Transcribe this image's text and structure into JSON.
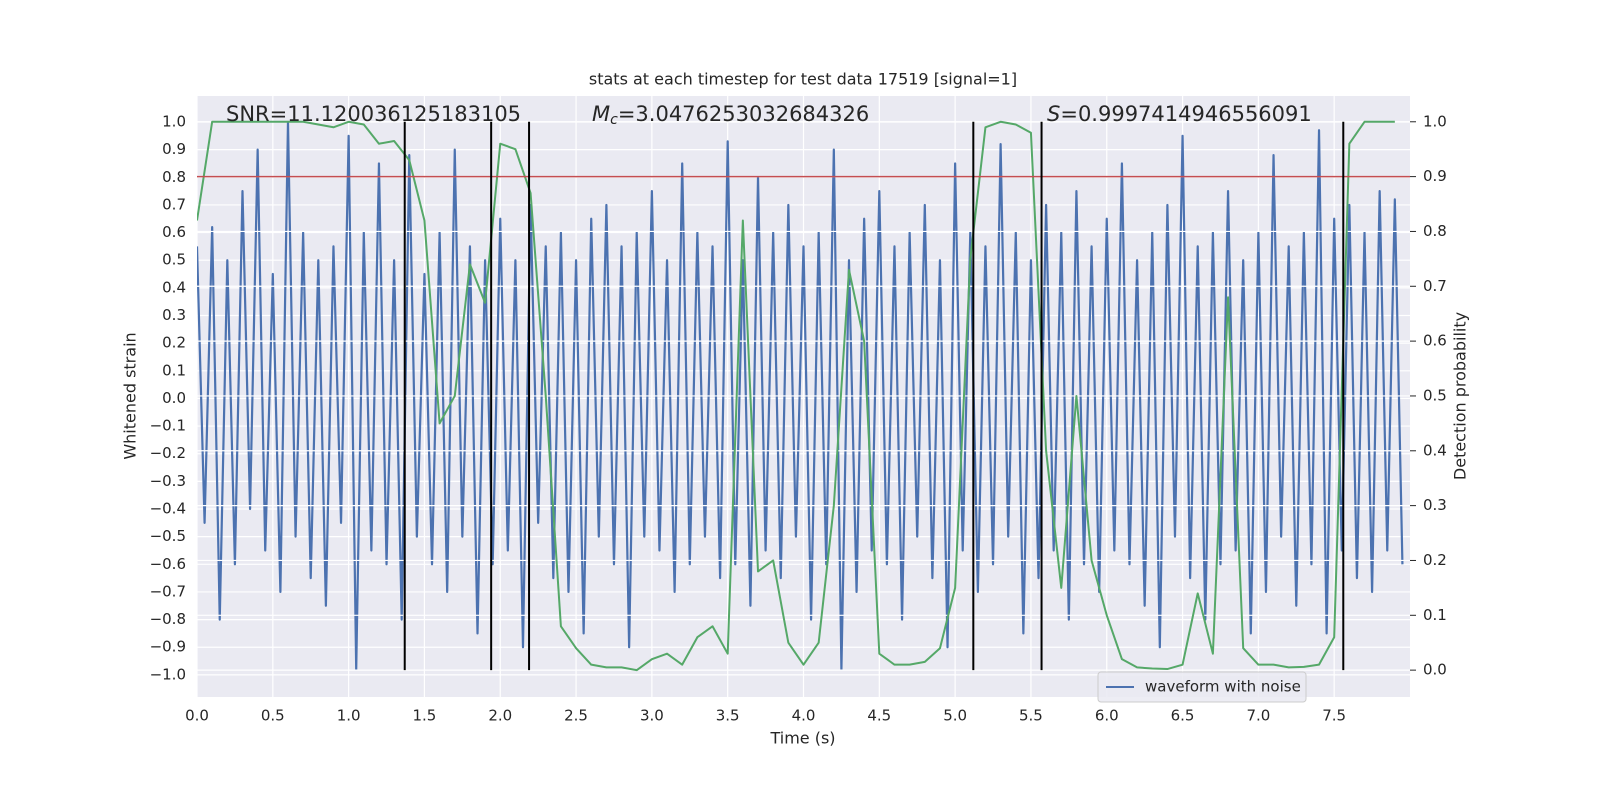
{
  "chart_data": {
    "type": "line",
    "title": "stats at each timestep for test data 17519 [signal=1]",
    "xlabel": "Time (s)",
    "ylabel": "Whitened strain",
    "y2label": "Detection probability",
    "annotations": [
      {
        "text": "SNR=11.120036125183105"
      },
      {
        "symbol": "M",
        "subscript": "c",
        "text": "=3.0476253032684326"
      },
      {
        "symbol": "S",
        "text": "=0.9997414946556091"
      }
    ],
    "xlim": [
      0,
      8.0
    ],
    "ylim": [
      -1.08,
      1.094
    ],
    "y2lim": [
      -0.049,
      1.047
    ],
    "xticks": [
      {
        "value": 0,
        "label": "0.0"
      },
      0.5,
      {
        "value": 1,
        "label": "1.0"
      },
      1.5,
      {
        "value": 2,
        "label": "2.0"
      },
      2.5,
      {
        "value": 3,
        "label": "3.0"
      },
      3.5,
      {
        "value": 4,
        "label": "4.0"
      },
      4.5,
      {
        "value": 5,
        "label": "5.0"
      },
      5.5,
      {
        "value": 6,
        "label": "6.0"
      },
      6.5,
      {
        "value": 7,
        "label": "7.0"
      },
      7.5
    ],
    "yticks": [
      {
        "value": -1,
        "label": "−1.0"
      },
      {
        "value": -0.9,
        "label": "−0.9"
      },
      {
        "value": -0.8,
        "label": "−0.8"
      },
      {
        "value": -0.7,
        "label": "−0.7"
      },
      {
        "value": -0.6,
        "label": "−0.6"
      },
      {
        "value": -0.5,
        "label": "−0.5"
      },
      {
        "value": -0.4,
        "label": "−0.4"
      },
      {
        "value": -0.3,
        "label": "−0.3"
      },
      {
        "value": -0.2,
        "label": "−0.2"
      },
      {
        "value": -0.1,
        "label": "−0.1"
      },
      {
        "value": 0,
        "label": "0.0"
      },
      0.1,
      0.2,
      0.3,
      0.4,
      0.5,
      0.6,
      0.7,
      0.8,
      0.9,
      {
        "value": 1,
        "label": "1.0"
      }
    ],
    "y2ticks": [
      {
        "value": 0,
        "label": "0.0"
      },
      0.1,
      0.2,
      0.3,
      0.4,
      0.5,
      0.6,
      0.7,
      0.8,
      0.9,
      {
        "value": 1,
        "label": "1.0"
      }
    ],
    "grid": true,
    "legend": "lower right",
    "series": [
      {
        "name": "waveform with noise",
        "color": "#4c72b0",
        "axis": "y",
        "x": [
          0,
          0.05,
          0.1,
          0.15,
          0.2,
          0.25,
          0.3,
          0.35,
          0.4,
          0.45,
          0.5,
          0.55,
          0.6,
          0.65,
          0.7,
          0.75,
          0.8,
          0.85,
          0.9,
          0.95,
          1,
          1.05,
          1.1,
          1.15,
          1.2,
          1.25,
          1.3,
          1.35,
          1.4,
          1.45,
          1.5,
          1.55,
          1.6,
          1.65,
          1.7,
          1.75,
          1.8,
          1.85,
          1.9,
          1.95,
          2,
          2.05,
          2.1,
          2.15,
          2.2,
          2.25,
          2.3,
          2.35,
          2.4,
          2.45,
          2.5,
          2.55,
          2.6,
          2.65,
          2.7,
          2.75,
          2.8,
          2.85,
          2.9,
          2.95,
          3,
          3.05,
          3.1,
          3.15,
          3.2,
          3.25,
          3.3,
          3.35,
          3.4,
          3.45,
          3.5,
          3.55,
          3.6,
          3.65,
          3.7,
          3.75,
          3.8,
          3.85,
          3.9,
          3.95,
          4,
          4.05,
          4.1,
          4.15,
          4.2,
          4.25,
          4.3,
          4.35,
          4.4,
          4.45,
          4.5,
          4.55,
          4.6,
          4.65,
          4.7,
          4.75,
          4.8,
          4.85,
          4.9,
          4.95,
          5,
          5.05,
          5.1,
          5.15,
          5.2,
          5.25,
          5.3,
          5.35,
          5.4,
          5.45,
          5.5,
          5.55,
          5.6,
          5.65,
          5.7,
          5.75,
          5.8,
          5.85,
          5.9,
          5.95,
          6,
          6.05,
          6.1,
          6.15,
          6.2,
          6.25,
          6.3,
          6.35,
          6.4,
          6.45,
          6.5,
          6.55,
          6.6,
          6.65,
          6.7,
          6.75,
          6.8,
          6.85,
          6.9,
          6.95,
          7,
          7.05,
          7.1,
          7.15,
          7.2,
          7.25,
          7.3,
          7.35,
          7.4,
          7.45,
          7.5,
          7.55,
          7.6,
          7.65,
          7.7,
          7.75,
          7.8,
          7.85,
          7.9,
          7.95
        ],
        "values": [
          0.55,
          -0.45,
          0.62,
          -0.8,
          0.5,
          -0.6,
          0.75,
          -0.4,
          0.9,
          -0.55,
          0.45,
          -0.7,
          1.0,
          -0.5,
          0.6,
          -0.65,
          0.5,
          -0.75,
          0.55,
          -0.45,
          0.95,
          -0.98,
          0.6,
          -0.55,
          0.85,
          -0.6,
          0.5,
          -0.8,
          0.88,
          -0.5,
          0.45,
          -0.6,
          0.6,
          -0.7,
          0.9,
          -0.5,
          0.55,
          -0.85,
          0.5,
          -0.6,
          0.65,
          -0.55,
          0.5,
          -0.9,
          0.7,
          -0.45,
          0.55,
          -0.65,
          0.6,
          -0.7,
          0.5,
          -0.85,
          0.65,
          -0.5,
          0.7,
          -0.6,
          0.55,
          -0.9,
          0.6,
          -0.5,
          0.75,
          -0.55,
          0.5,
          -0.7,
          0.85,
          -0.6,
          0.6,
          -0.5,
          0.55,
          -0.65,
          0.93,
          -0.6,
          0.5,
          -0.75,
          0.8,
          -0.55,
          0.6,
          -0.65,
          0.7,
          -0.5,
          0.55,
          -0.8,
          0.6,
          -0.6,
          0.9,
          -0.98,
          0.5,
          -0.7,
          0.65,
          -0.55,
          0.75,
          -0.6,
          0.55,
          -0.8,
          0.6,
          -0.5,
          0.7,
          -0.65,
          0.5,
          -0.9,
          0.85,
          -0.55,
          0.6,
          -0.7,
          0.55,
          -0.6,
          0.92,
          -0.5,
          0.6,
          -0.85,
          0.5,
          -0.65,
          0.7,
          -0.55,
          0.6,
          -0.8,
          0.75,
          -0.6,
          0.55,
          -0.7,
          0.65,
          -0.55,
          0.85,
          -0.6,
          0.5,
          -0.75,
          0.6,
          -0.9,
          0.7,
          -0.5,
          0.95,
          -0.65,
          0.55,
          -0.8,
          0.6,
          -0.6,
          0.75,
          -0.55,
          0.5,
          -0.85,
          0.6,
          -0.7,
          0.88,
          -0.5,
          0.55,
          -0.75,
          0.6,
          -0.6,
          0.97,
          -0.85,
          0.65,
          -0.55,
          0.7,
          -0.65,
          0.6,
          -0.7,
          0.75,
          -0.55,
          0.72,
          -0.6
        ]
      },
      {
        "color": "#55a868",
        "axis": "y2",
        "x": [
          0,
          0.1,
          0.2,
          0.3,
          0.4,
          0.5,
          0.6,
          0.7,
          0.8,
          0.9,
          1,
          1.1,
          1.2,
          1.3,
          1.4,
          1.5,
          1.6,
          1.7,
          1.8,
          1.9,
          2,
          2.1,
          2.2,
          2.3,
          2.4,
          2.5,
          2.6,
          2.7,
          2.8,
          2.9,
          3,
          3.1,
          3.2,
          3.3,
          3.4,
          3.5,
          3.6,
          3.7,
          3.8,
          3.9,
          4,
          4.1,
          4.2,
          4.3,
          4.4,
          4.5,
          4.6,
          4.7,
          4.8,
          4.9,
          5,
          5.1,
          5.2,
          5.3,
          5.4,
          5.5,
          5.6,
          5.7,
          5.8,
          5.9,
          6,
          6.1,
          6.2,
          6.3,
          6.4,
          6.5,
          6.6,
          6.7,
          6.8,
          6.9,
          7,
          7.1,
          7.2,
          7.3,
          7.4,
          7.5,
          7.6,
          7.7,
          7.8,
          7.9
        ],
        "values": [
          0.82,
          1.0,
          1.0,
          1.0,
          1.0,
          1.0,
          1.0,
          1.0,
          0.995,
          0.99,
          1.0,
          0.995,
          0.96,
          0.965,
          0.93,
          0.82,
          0.45,
          0.5,
          0.74,
          0.67,
          0.96,
          0.95,
          0.87,
          0.5,
          0.08,
          0.04,
          0.01,
          0.005,
          0.005,
          0.0,
          0.02,
          0.03,
          0.01,
          0.06,
          0.08,
          0.03,
          0.82,
          0.18,
          0.2,
          0.05,
          0.01,
          0.05,
          0.3,
          0.73,
          0.6,
          0.03,
          0.01,
          0.01,
          0.015,
          0.04,
          0.15,
          0.75,
          0.99,
          1.0,
          0.995,
          0.98,
          0.4,
          0.15,
          0.5,
          0.2,
          0.1,
          0.02,
          0.005,
          0.003,
          0.002,
          0.01,
          0.14,
          0.03,
          0.68,
          0.04,
          0.01,
          0.01,
          0.005,
          0.006,
          0.01,
          0.06,
          0.96,
          1.0,
          1.0,
          1.0
        ]
      }
    ],
    "hline": {
      "value": 0.9,
      "axis": "y2",
      "color": "#c44e52"
    },
    "vlines": {
      "x": [
        1.37,
        1.94,
        2.19,
        5.12,
        5.57,
        7.56
      ],
      "ymin": 0,
      "ymax": 1,
      "axis": "y2",
      "color": "#000000"
    }
  }
}
